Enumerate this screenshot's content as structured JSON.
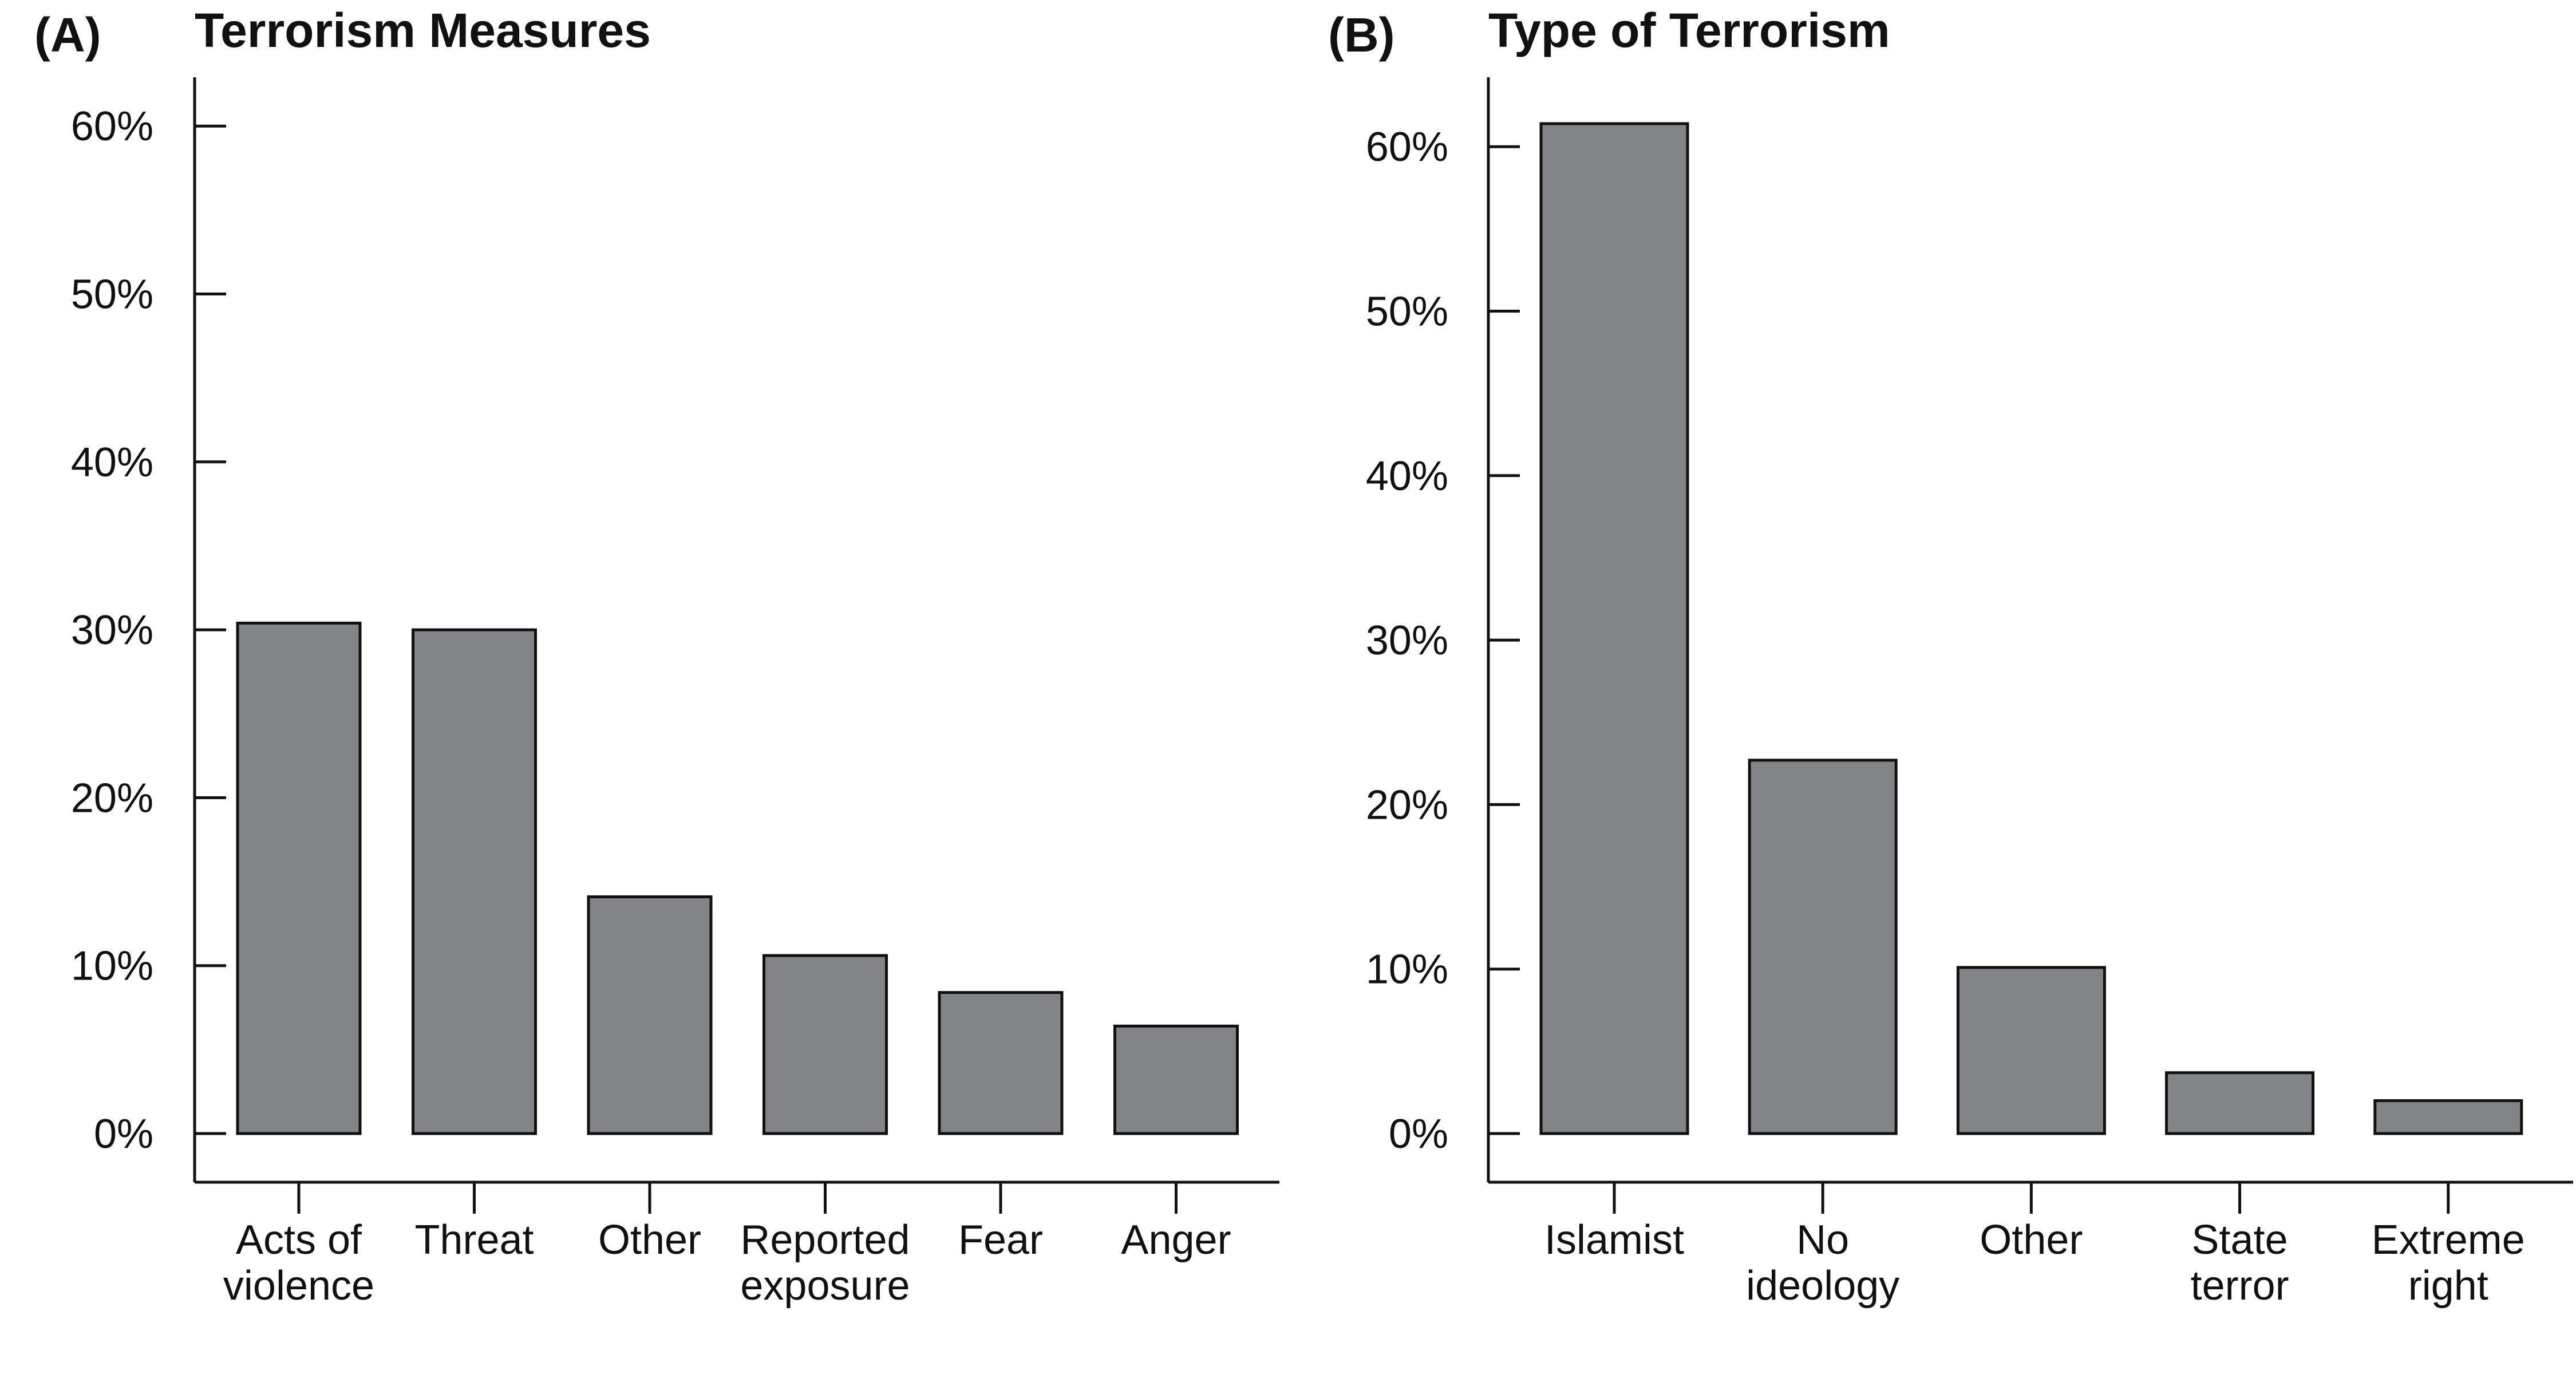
{
  "chart_data": [
    {
      "panel_label": "(A)",
      "title": "Terrorism Measures",
      "type": "bar",
      "categories": [
        "Acts of\nviolence",
        "Threat",
        "Other",
        "Reported\nexposure",
        "Fear",
        "Anger"
      ],
      "values": [
        30.4,
        30.0,
        14.1,
        10.6,
        8.4,
        6.4
      ],
      "ylim": [
        0,
        60
      ],
      "yticks": [
        "0%",
        "10%",
        "20%",
        "30%",
        "40%",
        "50%",
        "60%"
      ],
      "xlabel": "",
      "ylabel": "",
      "grid": false,
      "bar_color": "#838488"
    },
    {
      "panel_label": "(B)",
      "title": "Type of Terrorism",
      "type": "bar",
      "categories": [
        "Islamist",
        "No\nideology",
        "Other",
        "State\nterror",
        "Extreme\nright"
      ],
      "values": [
        61.4,
        22.7,
        10.1,
        3.7,
        2.0
      ],
      "ylim": [
        0,
        60
      ],
      "yticks": [
        "0%",
        "10%",
        "20%",
        "30%",
        "40%",
        "50%",
        "60%"
      ],
      "xlabel": "",
      "ylabel": "",
      "grid": false,
      "bar_color": "#838488"
    }
  ]
}
